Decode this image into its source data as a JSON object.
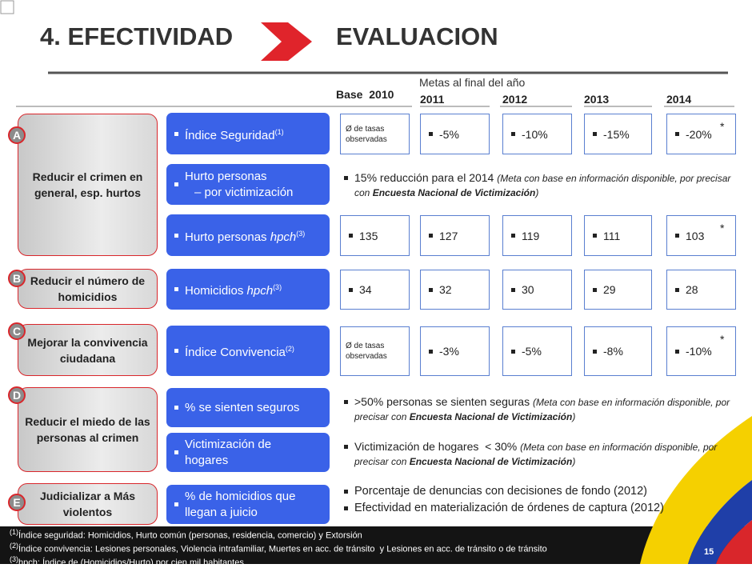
{
  "header": {
    "title": "4. EFECTIVIDAD",
    "subtitle": "EVALUACION"
  },
  "columns": {
    "goals_label": "Metas al final del año",
    "base": "Base  2010",
    "years": [
      "2011",
      "2012",
      "2013",
      "2014"
    ]
  },
  "objectives": [
    {
      "letter": "A",
      "text": "Reducir el crimen en general, esp. hurtos"
    },
    {
      "letter": "B",
      "text": "Reducir el número de homicidios"
    },
    {
      "letter": "C",
      "text": "Mejorar la convivencia ciudadana"
    },
    {
      "letter": "D",
      "text": "Reducir el miedo de las personas al crimen"
    },
    {
      "letter": "E",
      "text": "Judicializar a Más violentos"
    }
  ],
  "indicators": [
    {
      "label": "Índice Seguridad",
      "sup": "(1)",
      "base": "Ø de tasas observadas",
      "values": [
        "-5%",
        "-10%",
        "-15%",
        "-20%"
      ],
      "asterisk": "*"
    },
    {
      "label": "Hurto personas",
      "label2": "– por victimización",
      "note": {
        "lead": "15% reducción para el 2014 ",
        "italic": "(Meta con base en información disponible, por precisar con ",
        "bold": "Encuesta Nacional de Victimización",
        "end": ")"
      }
    },
    {
      "label": "Hurto personas ",
      "italic": "hpch",
      "sup": "(3)",
      "base_value": 135,
      "values": [
        127,
        119,
        111,
        103
      ],
      "asterisk": "*"
    },
    {
      "label": "Homicidios ",
      "italic": "hpch",
      "sup": "(3)",
      "base_value": 34,
      "values": [
        32,
        30,
        29,
        28
      ]
    },
    {
      "label": "Índice Convivencia",
      "sup": "(2)",
      "base": "Ø de tasas observadas",
      "values": [
        "-3%",
        "-5%",
        "-8%",
        "-10%"
      ],
      "asterisk": "*"
    },
    {
      "label": "% se sienten seguros",
      "note": {
        "lead": ">50% personas se sienten seguras ",
        "italic": "(Meta con base en información disponible, por precisar con ",
        "bold": "Encuesta Nacional de Victimización",
        "end": ")"
      }
    },
    {
      "label": "Victimización de",
      "label2": "hogares",
      "note": {
        "lead": "Victimización de hogares  < 30% ",
        "italic": "(Meta con base en información disponible, por precisar con ",
        "bold": "Encuesta Nacional de Victimización",
        "end": ")"
      }
    },
    {
      "label": "% de homicidios que",
      "label2": "llegan a juicio",
      "bullets": [
        "Porcentaje de denuncias con decisiones de fondo (2012)",
        "Efectividad en materialización de órdenes de captura (2012)"
      ]
    }
  ],
  "footnotes": [
    {
      "sup": "(1)",
      "text": "Índice seguridad: Homicidios, Hurto común (personas, residencia, comercio) y Extorsión"
    },
    {
      "sup": "(2)",
      "text": "Índice convivencia: Lesiones personales, Violencia intrafamiliar, Muertes en acc. de tránsito  y Lesiones en acc. de tránsito o de tránsito"
    },
    {
      "sup": "(3)",
      "text": "hpch: Índice de (Homicidios/Hurto) por cien mil habitantes"
    }
  ],
  "page": "15"
}
